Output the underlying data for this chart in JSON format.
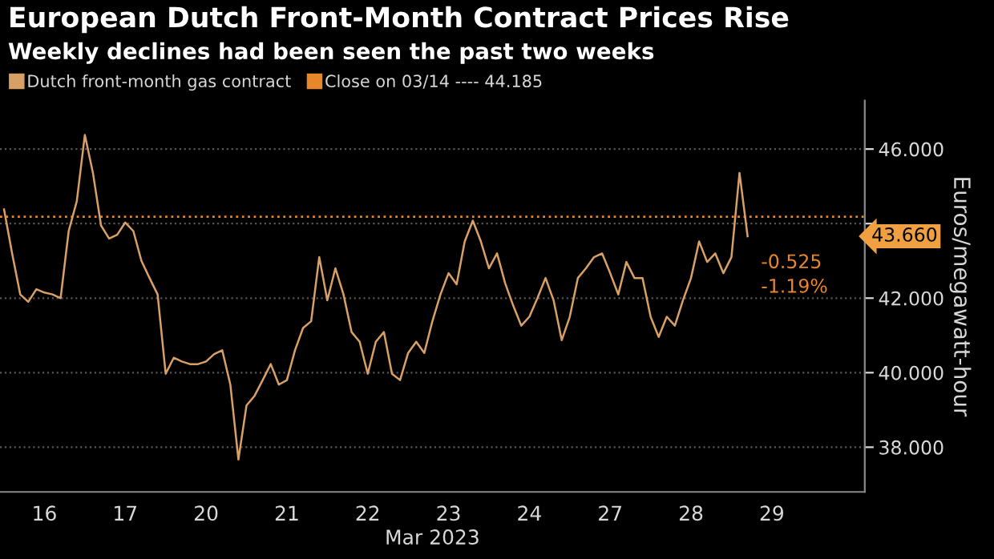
{
  "chart_data": {
    "type": "line",
    "title": "European Dutch Front-Month Contract Prices Rise",
    "subtitle": "Weekly declines had been seen the past two weeks",
    "xlabel": "Mar 2023",
    "ylabel": "Euros/megawatt-hour",
    "categories": [
      null,
      null,
      null,
      null,
      null,
      "16",
      null,
      null,
      null,
      null,
      null,
      null,
      null,
      null,
      null,
      "17",
      null,
      null,
      null,
      null,
      null,
      null,
      null,
      null,
      null,
      "20",
      null,
      null,
      null,
      null,
      null,
      null,
      null,
      null,
      null,
      "21",
      null,
      null,
      null,
      null,
      null,
      null,
      null,
      null,
      null,
      "22",
      null,
      null,
      null,
      null,
      null,
      null,
      null,
      null,
      null,
      "23",
      null,
      null,
      null,
      null,
      null,
      null,
      null,
      null,
      null,
      "24",
      null,
      null,
      null,
      null,
      null,
      null,
      null,
      null,
      null,
      "27",
      null,
      null,
      null,
      null,
      null,
      null,
      null,
      null,
      null,
      "28",
      null,
      null,
      null,
      null,
      null,
      null,
      null,
      null,
      null,
      "29",
      null,
      null,
      null,
      null,
      null,
      null,
      null,
      null,
      null,
      null,
      null
    ],
    "series": [
      {
        "name": "Dutch front-month gas contract",
        "color": "#d9a066",
        "values": [
          44.38,
          43.2,
          42.1,
          41.9,
          42.24,
          42.15,
          42.1,
          42.0,
          43.8,
          44.6,
          46.38,
          45.36,
          43.95,
          43.6,
          43.7,
          44.03,
          43.8,
          43.0,
          42.54,
          42.1,
          39.97,
          40.4,
          40.3,
          40.23,
          40.23,
          40.3,
          40.5,
          40.6,
          39.68,
          37.67,
          39.12,
          39.38,
          39.8,
          40.23,
          39.68,
          39.8,
          40.6,
          41.2,
          41.38,
          43.1,
          41.94,
          42.8,
          42.1,
          41.09,
          40.83,
          39.97,
          40.83,
          41.09,
          39.97,
          39.8,
          40.53,
          40.83,
          40.53,
          41.38,
          42.1,
          42.67,
          42.37,
          43.52,
          44.08,
          43.52,
          42.8,
          43.2,
          42.4,
          41.8,
          41.26,
          41.5,
          42.0,
          42.54,
          41.94,
          40.87,
          41.5,
          42.54,
          42.8,
          43.1,
          43.2,
          42.67,
          42.1,
          42.97,
          42.54,
          42.54,
          41.5,
          40.96,
          41.5,
          41.26,
          41.94,
          42.54,
          43.52,
          42.97,
          43.2,
          42.67,
          43.1,
          45.36,
          43.66,
          null,
          null,
          null,
          null,
          null,
          null,
          null,
          null,
          null,
          null,
          null,
          null,
          null,
          null
        ]
      }
    ],
    "ylim": [
      36.8,
      47.3
    ],
    "yticks": [
      {
        "value": 38,
        "label": "38.000"
      },
      {
        "value": 40,
        "label": "40.000"
      },
      {
        "value": 42,
        "label": "42.000"
      },
      {
        "value": 44,
        "label": null
      },
      {
        "value": 46,
        "label": "46.000"
      }
    ],
    "grid": "y",
    "legend": "top left",
    "ref_lines": [
      {
        "axis": "y",
        "value": 44.185,
        "label": "Close on 03/14 ---- 44.185",
        "color": "#e8862a",
        "line_style": "dotted"
      }
    ],
    "annotations": [
      "43.660",
      "-0.525",
      "-1.19%"
    ]
  }
}
